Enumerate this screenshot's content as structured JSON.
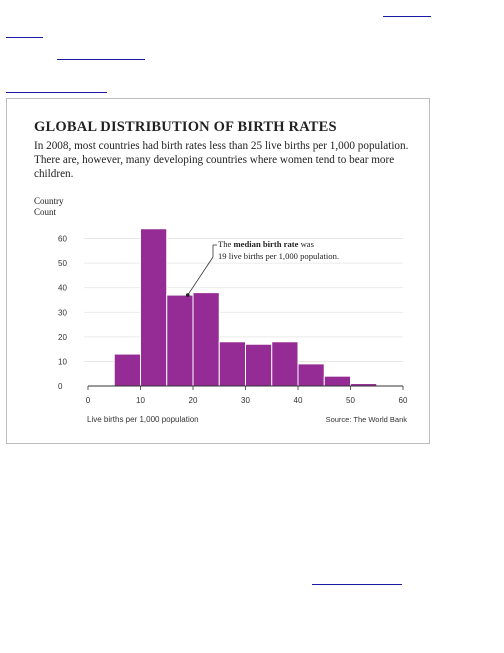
{
  "chart_data": {
    "type": "bar",
    "title": "GLOBAL DISTRIBUTION OF BIRTH RATES",
    "subtitle": "In 2008, most countries had birth rates less than 25 live births per 1,000 population. There are, however, many developing countries where women tend to bear more children.",
    "ylabel": "Country Count",
    "xlabel": "Live births per 1,000 population",
    "source": "Source: The World Bank",
    "bin_edges": [
      5,
      10,
      15,
      20,
      25,
      30,
      35,
      40,
      45,
      50,
      55
    ],
    "values": [
      13,
      64,
      37,
      38,
      18,
      17,
      18,
      9,
      4,
      1
    ],
    "xlim": [
      0,
      60
    ],
    "ylim": [
      0,
      70
    ],
    "xticks": [
      "0",
      "10",
      "20",
      "30",
      "40",
      "50",
      "60"
    ],
    "yticks": [
      "0",
      "10",
      "20",
      "30",
      "40",
      "50",
      "60"
    ],
    "grid": true,
    "bar_color": "#952b94",
    "annotation": {
      "text_before": "The ",
      "text_bold": "median birth rate",
      "text_after": " was",
      "line2": "19 live births per 1,000 population.",
      "x": 19,
      "y": 37
    }
  }
}
